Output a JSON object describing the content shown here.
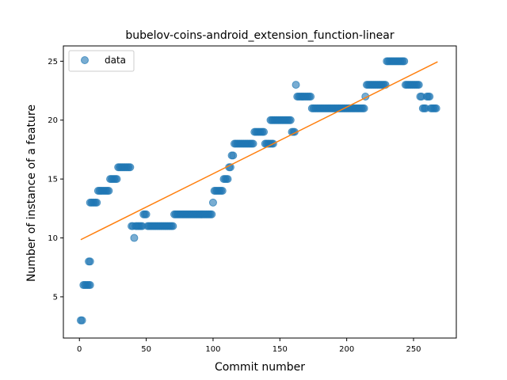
{
  "chart_data": {
    "type": "scatter",
    "title": "bubelov-coins-android_extension_function-linear",
    "xlabel": "Commit number",
    "ylabel": "Number of instance of a feature",
    "xlim": [
      -12,
      282
    ],
    "ylim": [
      1.5,
      26.3
    ],
    "xticks": [
      0,
      50,
      100,
      150,
      200,
      250
    ],
    "yticks": [
      5,
      10,
      15,
      20,
      25
    ],
    "grid": false,
    "legend": {
      "placement": "top-left",
      "entries": [
        "data"
      ]
    },
    "colors": {
      "points": "#1f77b4",
      "fit_line": "#ff7f0e"
    },
    "series": [
      {
        "name": "data",
        "kind": "scatter",
        "segments": [
          [
            1,
            2,
            3
          ],
          [
            3,
            8,
            6
          ],
          [
            7,
            8,
            8
          ],
          [
            8,
            13,
            13
          ],
          [
            14,
            22,
            14
          ],
          [
            23,
            28,
            15
          ],
          [
            29,
            38,
            16
          ],
          [
            39,
            40,
            11
          ],
          [
            41,
            41,
            10
          ],
          [
            42,
            47,
            11
          ],
          [
            48,
            50,
            12
          ],
          [
            51,
            70,
            11
          ],
          [
            71,
            99,
            12
          ],
          [
            100,
            100,
            13
          ],
          [
            101,
            107,
            14
          ],
          [
            108,
            111,
            15
          ],
          [
            112,
            113,
            16
          ],
          [
            114,
            115,
            17
          ],
          [
            116,
            130,
            18
          ],
          [
            131,
            138,
            19
          ],
          [
            139,
            145,
            18
          ],
          [
            143,
            158,
            20
          ],
          [
            159,
            161,
            19
          ],
          [
            162,
            162,
            23
          ],
          [
            163,
            173,
            22
          ],
          [
            174,
            213,
            21
          ],
          [
            214,
            214,
            22
          ],
          [
            215,
            229,
            23
          ],
          [
            230,
            243,
            25
          ],
          [
            244,
            254,
            23
          ],
          [
            255,
            256,
            22
          ],
          [
            257,
            259,
            21
          ],
          [
            260,
            262,
            22
          ],
          [
            263,
            267,
            21
          ]
        ]
      },
      {
        "kind": "line",
        "x": [
          1,
          268
        ],
        "y": [
          9.85,
          24.95
        ]
      }
    ]
  }
}
